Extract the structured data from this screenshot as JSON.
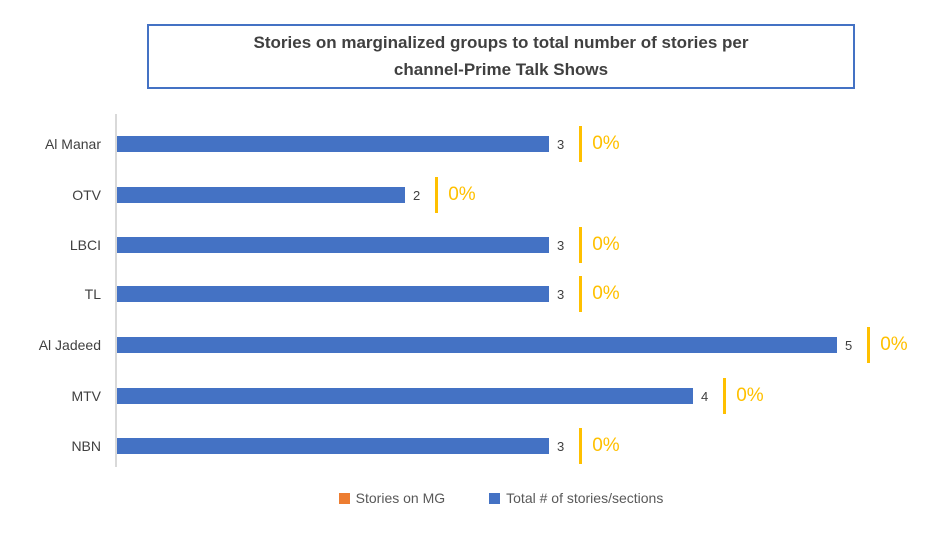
{
  "header": {
    "title_line1": "Stories on marginalized groups to total number of stories per",
    "title_line2": "channel-Prime Talk Shows"
  },
  "chart_data": {
    "type": "bar",
    "orientation": "horizontal",
    "title": "Stories on marginalized groups to total number of stories per channel-Prime Talk Shows",
    "categories": [
      "Al Manar",
      "OTV",
      "LBCI",
      "TL",
      "Al Jadeed",
      "MTV",
      "NBN"
    ],
    "series": [
      {
        "name": "Stories on MG",
        "color": "#ED7D31",
        "values": [
          0,
          0,
          0,
          0,
          0,
          0,
          0
        ],
        "labels": [
          "0%",
          "0%",
          "0%",
          "0%",
          "0%",
          "0%",
          "0%"
        ]
      },
      {
        "name": "Total # of stories/sections",
        "color": "#4472C4",
        "values": [
          3,
          2,
          3,
          3,
          5,
          4,
          3
        ]
      }
    ],
    "xlim": [
      0,
      5
    ],
    "gridlines": false,
    "legend_position": "bottom",
    "rows": [
      {
        "label": "Al Manar",
        "total": 3,
        "mg_pct": "0%"
      },
      {
        "label": "OTV",
        "total": 2,
        "mg_pct": "0%"
      },
      {
        "label": "LBCI",
        "total": 3,
        "mg_pct": "0%"
      },
      {
        "label": "TL",
        "total": 3,
        "mg_pct": "0%"
      },
      {
        "label": "Al Jadeed",
        "total": 5,
        "mg_pct": "0%"
      },
      {
        "label": "MTV",
        "total": 4,
        "mg_pct": "0%"
      },
      {
        "label": "NBN",
        "total": 3,
        "mg_pct": "0%"
      }
    ],
    "colors": {
      "bar_blue": "#4472C4",
      "accent_gold": "#FFC000",
      "legend_orange": "#ED7D31",
      "title_text": "#404040",
      "title_border": "#4472C4",
      "axis_line": "#D9D9D9",
      "label_text": "#404040",
      "legend_text": "#595959"
    }
  },
  "legend": {
    "items": [
      {
        "label": "Stories on MG"
      },
      {
        "label": "Total # of stories/sections"
      }
    ]
  }
}
